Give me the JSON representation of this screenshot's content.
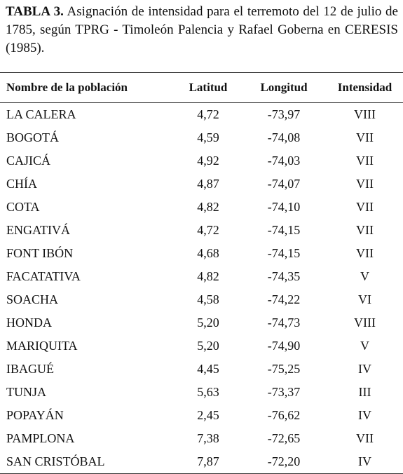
{
  "caption": {
    "label": "TABLA 3.",
    "text": "Asignación de intensidad para el terremoto del 12 de julio de 1785, según TPRG - Timoleón Palencia y Rafael Goberna en CERESIS (1985)."
  },
  "table": {
    "headers": [
      "Nombre de la población",
      "Latitud",
      "Longitud",
      "Intensidad"
    ],
    "rows": [
      [
        "LA CALERA",
        "4,72",
        "-73,97",
        "VIII"
      ],
      [
        "BOGOTÁ",
        "4,59",
        "-74,08",
        "VII"
      ],
      [
        "CAJICÁ",
        "4,92",
        "-74,03",
        "VII"
      ],
      [
        "CHÍA",
        "4,87",
        "-74,07",
        "VII"
      ],
      [
        "COTA",
        "4,82",
        "-74,10",
        "VII"
      ],
      [
        "ENGATIVÁ",
        "4,72",
        "-74,15",
        "VII"
      ],
      [
        "FONT IBÓN",
        "4,68",
        "-74,15",
        "VII"
      ],
      [
        "FACATATIVA",
        "4,82",
        "-74,35",
        "V"
      ],
      [
        "SOACHA",
        "4,58",
        "-74,22",
        "VI"
      ],
      [
        "HONDA",
        "5,20",
        "-74,73",
        "VIII"
      ],
      [
        "MARIQUITA",
        "5,20",
        "-74,90",
        "V"
      ],
      [
        "IBAGUÉ",
        "4,45",
        "-75,25",
        "IV"
      ],
      [
        "TUNJA",
        "5,63",
        "-73,37",
        "III"
      ],
      [
        "POPAYÁN",
        "2,45",
        "-76,62",
        "IV"
      ],
      [
        "PAMPLONA",
        "7,38",
        "-72,65",
        "VII"
      ],
      [
        "SAN CRISTÓBAL",
        "7,87",
        "-72,20",
        "IV"
      ]
    ]
  }
}
